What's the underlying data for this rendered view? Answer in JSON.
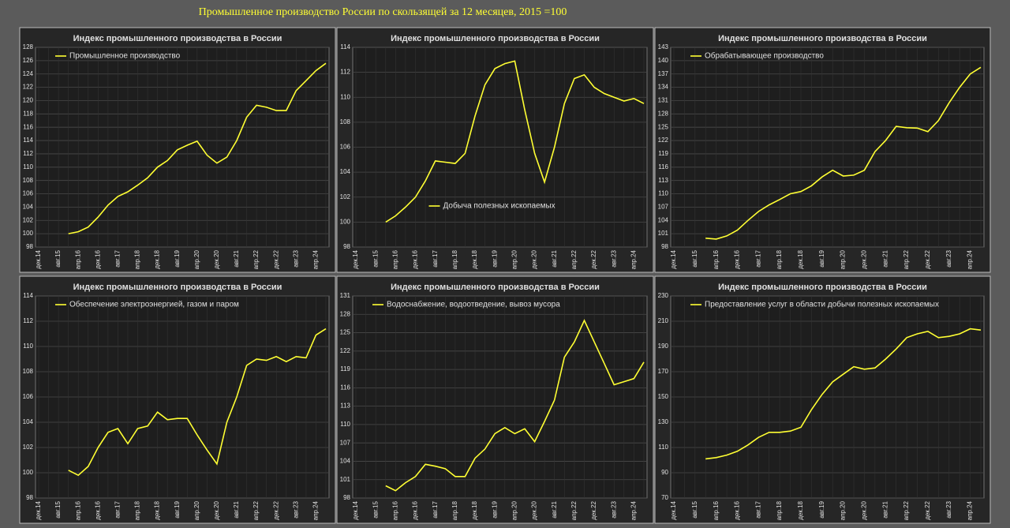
{
  "title": "Промышленное производство России по скользящей за 12 месяцев, 2015 =100",
  "chart_data": [
    {
      "type": "line",
      "title": "Индекс промышленного производства в России",
      "legend": "upper left",
      "grid": true,
      "categories": [
        "дек.14",
        null,
        "авг.15",
        null,
        "апр.16",
        null,
        "дек.16",
        null,
        "авг.17",
        null,
        "апр.18",
        null,
        "дек.18",
        null,
        "авг.19",
        null,
        "апр.20",
        null,
        "дек.20",
        null,
        "авг.21",
        null,
        "апр.22",
        null,
        "дек.22",
        null,
        "авг.23",
        null,
        "апр.24",
        null
      ],
      "series": [
        {
          "name": "Промышленное производство",
          "color": "#ffff33",
          "values": [
            null,
            null,
            null,
            100.0,
            100.3,
            101.0,
            102.5,
            104.3,
            105.6,
            106.3,
            107.3,
            108.4,
            110.0,
            111.0,
            112.6,
            113.3,
            113.9,
            111.8,
            110.6,
            111.5,
            114.0,
            117.5,
            119.3,
            119.0,
            118.5,
            118.5,
            121.5,
            123.0,
            124.5,
            125.6
          ]
        }
      ],
      "ylim": [
        98,
        128
      ],
      "yticks": [
        98,
        100,
        102,
        104,
        106,
        108,
        110,
        112,
        114,
        116,
        118,
        120,
        122,
        124,
        126,
        128
      ]
    },
    {
      "type": "line",
      "title": "Индекс промышленного производства в России",
      "legend": "lower center",
      "grid": true,
      "categories": [
        "дек.14",
        null,
        "авг.15",
        null,
        "апр.16",
        null,
        "дек.16",
        null,
        "авг.17",
        null,
        "апр.18",
        null,
        "дек.18",
        null,
        "авг.19",
        null,
        "апр.20",
        null,
        "дек.20",
        null,
        "авг.21",
        null,
        "апр.22",
        null,
        "дек.22",
        null,
        "авг.23",
        null,
        "апр.24",
        null
      ],
      "series": [
        {
          "name": "Добыча полезных ископаемых",
          "color": "#ffff33",
          "values": [
            null,
            null,
            null,
            100.0,
            100.5,
            101.2,
            102.0,
            103.3,
            104.9,
            104.8,
            104.7,
            105.5,
            108.5,
            111.0,
            112.3,
            112.7,
            112.9,
            109.0,
            105.5,
            103.2,
            106.0,
            109.5,
            111.5,
            111.8,
            110.8,
            110.3,
            110.0,
            109.7,
            109.9,
            109.5
          ]
        }
      ],
      "ylim": [
        98,
        114
      ],
      "yticks": [
        98,
        100,
        102,
        104,
        106,
        108,
        110,
        112,
        114
      ]
    },
    {
      "type": "line",
      "title": "Индекс промышленного производства в России",
      "legend": "upper left",
      "grid": true,
      "categories": [
        "дек.14",
        null,
        "авг.15",
        null,
        "апр.16",
        null,
        "дек.16",
        null,
        "авг.17",
        null,
        "апр.18",
        null,
        "дек.18",
        null,
        "авг.19",
        null,
        "апр.20",
        null,
        "дек.20",
        null,
        "авг.21",
        null,
        "апр.22",
        null,
        "дек.22",
        null,
        "авг.23",
        null,
        "апр.24",
        null
      ],
      "series": [
        {
          "name": "Обрабатывающее производство",
          "color": "#ffff33",
          "values": [
            null,
            null,
            null,
            100.0,
            99.8,
            100.5,
            101.8,
            104.0,
            106.0,
            107.5,
            108.7,
            110.0,
            110.5,
            111.8,
            113.8,
            115.3,
            114.0,
            114.2,
            115.3,
            119.5,
            122.0,
            125.2,
            124.9,
            124.8,
            124.0,
            126.5,
            130.5,
            134.0,
            137.0,
            138.5
          ]
        }
      ],
      "ylim": [
        98,
        143
      ],
      "yticks": [
        98,
        101,
        104,
        107,
        110,
        113,
        116,
        119,
        122,
        125,
        128,
        131,
        134,
        137,
        140,
        143
      ]
    },
    {
      "type": "line",
      "title": "Индекс промышленного производства в России",
      "legend": "upper left",
      "grid": true,
      "categories": [
        "дек.14",
        null,
        "авг.15",
        null,
        "апр.16",
        null,
        "дек.16",
        null,
        "авг.17",
        null,
        "апр.18",
        null,
        "дек.18",
        null,
        "авг.19",
        null,
        "апр.20",
        null,
        "дек.20",
        null,
        "авг.21",
        null,
        "апр.22",
        null,
        "дек.22",
        null,
        "авг.23",
        null,
        "апр.24",
        null
      ],
      "series": [
        {
          "name": "Обеспечение электроэнергией, газом и паром",
          "color": "#ffff33",
          "values": [
            null,
            null,
            null,
            100.2,
            99.8,
            100.5,
            102.0,
            103.2,
            103.5,
            102.3,
            103.5,
            103.7,
            104.8,
            104.2,
            104.3,
            104.3,
            103.0,
            101.8,
            100.7,
            104.0,
            106.0,
            108.5,
            109.0,
            108.9,
            109.2,
            108.8,
            109.2,
            109.1,
            110.9,
            111.4
          ]
        }
      ],
      "ylim": [
        98,
        114
      ],
      "yticks": [
        98,
        100,
        102,
        104,
        106,
        108,
        110,
        112,
        114
      ]
    },
    {
      "type": "line",
      "title": "Индекс промышленного производства в России",
      "legend": "upper left",
      "grid": true,
      "categories": [
        "дек.14",
        null,
        "авг.15",
        null,
        "апр.16",
        null,
        "дек.16",
        null,
        "авг.17",
        null,
        "апр.18",
        null,
        "дек.18",
        null,
        "авг.19",
        null,
        "апр.20",
        null,
        "дек.20",
        null,
        "авг.21",
        null,
        "апр.22",
        null,
        "дек.22",
        null,
        "авг.23",
        null,
        "апр.24",
        null
      ],
      "series": [
        {
          "name": "Водоснабжение, водоотведение, вывоз мусора",
          "color": "#ffff33",
          "values": [
            null,
            null,
            null,
            100.0,
            99.2,
            100.5,
            101.5,
            103.5,
            103.2,
            102.8,
            101.5,
            101.5,
            104.5,
            106.0,
            108.5,
            109.5,
            108.5,
            109.3,
            107.2,
            110.5,
            114.0,
            121.0,
            123.5,
            127.0,
            123.5,
            120.0,
            116.5,
            117.0,
            117.5,
            120.2
          ]
        }
      ],
      "ylim": [
        98,
        131
      ],
      "yticks": [
        98,
        101,
        104,
        107,
        110,
        113,
        116,
        119,
        122,
        125,
        128,
        131
      ]
    },
    {
      "type": "line",
      "title": "Индекс промышленного производства в России",
      "legend": "upper left",
      "grid": true,
      "categories": [
        "дек.14",
        null,
        "авг.15",
        null,
        "апр.16",
        null,
        "дек.16",
        null,
        "авг.17",
        null,
        "апр.18",
        null,
        "дек.18",
        null,
        "авг.19",
        null,
        "апр.20",
        null,
        "дек.20",
        null,
        "авг.21",
        null,
        "апр.22",
        null,
        "дек.22",
        null,
        "авг.23",
        null,
        "апр.24",
        null
      ],
      "series": [
        {
          "name": "Предоставление услуг в области добычи полезных ископаемых",
          "color": "#ffff33",
          "values": [
            null,
            null,
            null,
            101,
            102,
            104,
            107,
            112,
            118,
            122,
            122,
            123,
            126,
            140,
            152,
            162,
            168,
            174,
            172,
            173,
            180,
            188,
            197,
            200,
            202,
            197,
            198,
            200,
            204,
            203
          ]
        }
      ],
      "ylim": [
        70,
        230
      ],
      "yticks": [
        70,
        90,
        110,
        130,
        150,
        170,
        190,
        210,
        230
      ]
    }
  ]
}
